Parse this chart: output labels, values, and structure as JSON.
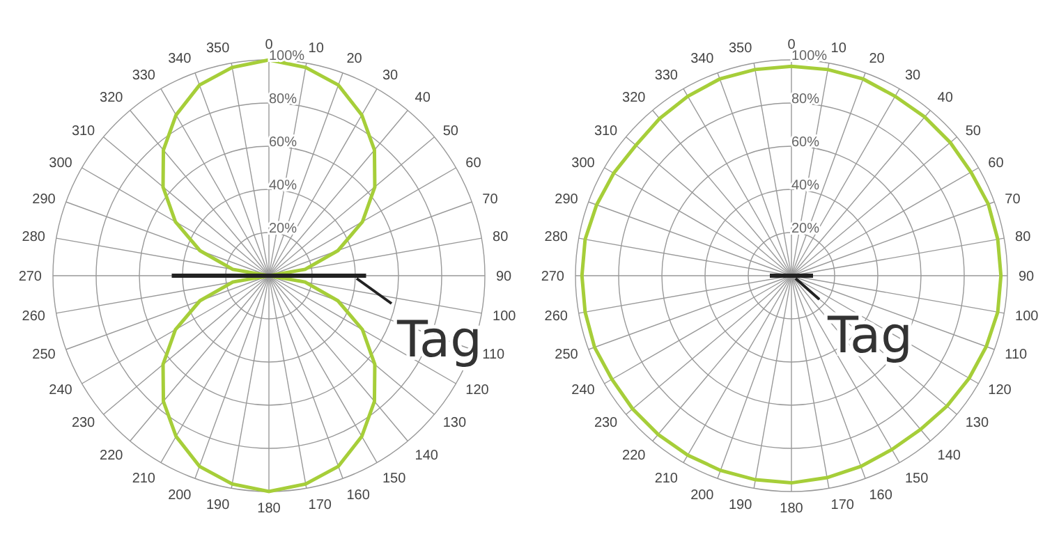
{
  "chart_data": [
    {
      "type": "radar",
      "categories": [
        "0",
        "10",
        "20",
        "30",
        "40",
        "50",
        "60",
        "70",
        "80",
        "90",
        "100",
        "110",
        "120",
        "130",
        "140",
        "150",
        "160",
        "170",
        "180",
        "190",
        "200",
        "210",
        "220",
        "230",
        "240",
        "250",
        "260",
        "270",
        "280",
        "290",
        "300",
        "310",
        "320",
        "330",
        "340",
        "350"
      ],
      "series": [
        {
          "color": "#a6ce39",
          "values": [
            100,
            98,
            94,
            86,
            76,
            64,
            50,
            34,
            17,
            0,
            17,
            34,
            50,
            64,
            76,
            86,
            94,
            98,
            100,
            98,
            94,
            86,
            76,
            64,
            50,
            34,
            17,
            0,
            17,
            34,
            50,
            64,
            76,
            86,
            94,
            98
          ]
        }
      ],
      "ylim": [
        0,
        100
      ],
      "yticks": [
        {
          "value": 20,
          "label": "20%"
        },
        {
          "value": 40,
          "label": "40%"
        },
        {
          "value": 60,
          "label": "60%"
        },
        {
          "value": 80,
          "label": "80%"
        },
        {
          "value": 100,
          "label": "100%"
        }
      ],
      "grid": true,
      "annotations": [
        "Tag"
      ]
    },
    {
      "type": "radar",
      "categories": [
        "0",
        "10",
        "20",
        "30",
        "40",
        "50",
        "60",
        "70",
        "80",
        "90",
        "100",
        "110",
        "120",
        "130",
        "140",
        "150",
        "160",
        "170",
        "180",
        "190",
        "200",
        "210",
        "220",
        "230",
        "240",
        "250",
        "260",
        "270",
        "280",
        "290",
        "300",
        "310",
        "320",
        "330",
        "340",
        "350"
      ],
      "series": [
        {
          "color": "#a6ce39",
          "values": [
            97,
            97,
            97,
            96,
            96,
            96,
            96,
            97,
            97,
            97,
            97,
            96,
            95,
            94,
            93,
            93,
            94,
            95,
            96,
            96,
            96,
            96,
            96,
            96,
            96,
            97,
            97,
            97,
            97,
            96,
            95,
            94,
            95,
            96,
            97,
            97
          ]
        }
      ],
      "ylim": [
        0,
        100
      ],
      "yticks": [
        {
          "value": 20,
          "label": "20%"
        },
        {
          "value": 40,
          "label": "40%"
        },
        {
          "value": 60,
          "label": "60%"
        },
        {
          "value": 80,
          "label": "80%"
        },
        {
          "value": 100,
          "label": "100%"
        }
      ],
      "grid": true,
      "annotations": [
        "Tag"
      ]
    }
  ]
}
